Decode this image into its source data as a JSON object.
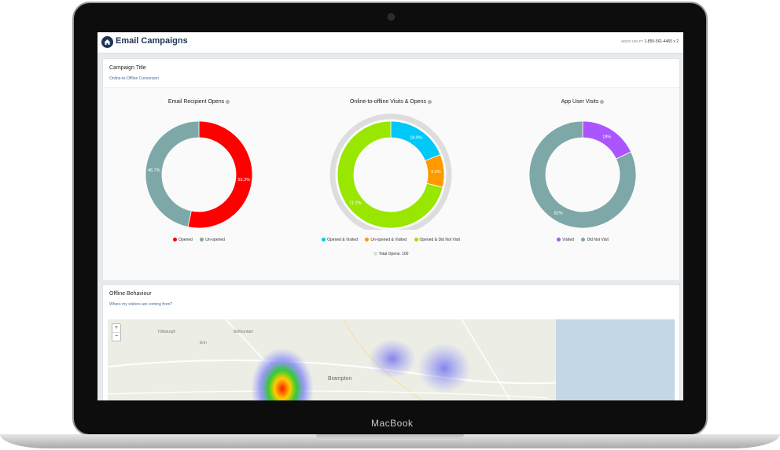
{
  "device": {
    "brand": "MacBook"
  },
  "header": {
    "app_title": "Email Campaigns",
    "help_label": "NEED HELP?",
    "phone": "1-855-561-4465 x 2"
  },
  "campaign": {
    "title": "Campaign Title",
    "subtitle": "Online-to-Offline Conversion"
  },
  "charts": {
    "opens": {
      "title": "Email Recipient Opens",
      "legend": [
        {
          "label": "Opened",
          "color": "#ff0000"
        },
        {
          "label": "Un-opened",
          "color": "#7ea8a8"
        }
      ]
    },
    "visits": {
      "title": "Online-to-offline Visits & Opens",
      "legend": [
        {
          "label": "Opened & Visited",
          "color": "#00c8f8"
        },
        {
          "label": "Un-opened & Visited",
          "color": "#ff9900"
        },
        {
          "label": "Opened & Did Not Visit",
          "color": "#99e600"
        }
      ],
      "total_label": "Total Opens: 100",
      "total_color": "#dddddd"
    },
    "app": {
      "title": "App User Visits",
      "legend": [
        {
          "label": "Visited",
          "color": "#aa55ff"
        },
        {
          "label": "Did Not Visit",
          "color": "#7ea8a8"
        }
      ]
    }
  },
  "chart_data": [
    {
      "type": "pie",
      "title": "Email Recipient Opens",
      "categories": [
        "Opened",
        "Un-opened"
      ],
      "values": [
        53.3,
        46.7
      ],
      "labels": [
        "53.3%",
        "46.7%"
      ],
      "colors": [
        "#ff0000",
        "#7ea8a8"
      ]
    },
    {
      "type": "pie",
      "title": "Online-to-offline Visits & Opens",
      "categories": [
        "Opened & Visited",
        "Un-opened & Visited",
        "Opened & Did Not Visit"
      ],
      "values": [
        18.9,
        9.9,
        71.2
      ],
      "labels": [
        "18.9%",
        "9.9%",
        "71.2%"
      ],
      "colors": [
        "#00c8f8",
        "#ff9900",
        "#99e600"
      ],
      "outer_ring": {
        "label": "Total Opens: 100",
        "value": 100
      }
    },
    {
      "type": "pie",
      "title": "App User Visits",
      "categories": [
        "Visited",
        "Did Not Visit"
      ],
      "values": [
        18,
        82
      ],
      "labels": [
        "18%",
        "82%"
      ],
      "colors": [
        "#aa55ff",
        "#7ea8a8"
      ]
    }
  ],
  "offline": {
    "title": "Offline Behaviour",
    "subtitle": "Where my visitors are coming from?"
  },
  "map": {
    "zoom_in": "+",
    "zoom_out": "−",
    "labels": [
      "Brampton",
      "Erin",
      "Hillsburgh",
      "Belfountain"
    ]
  }
}
